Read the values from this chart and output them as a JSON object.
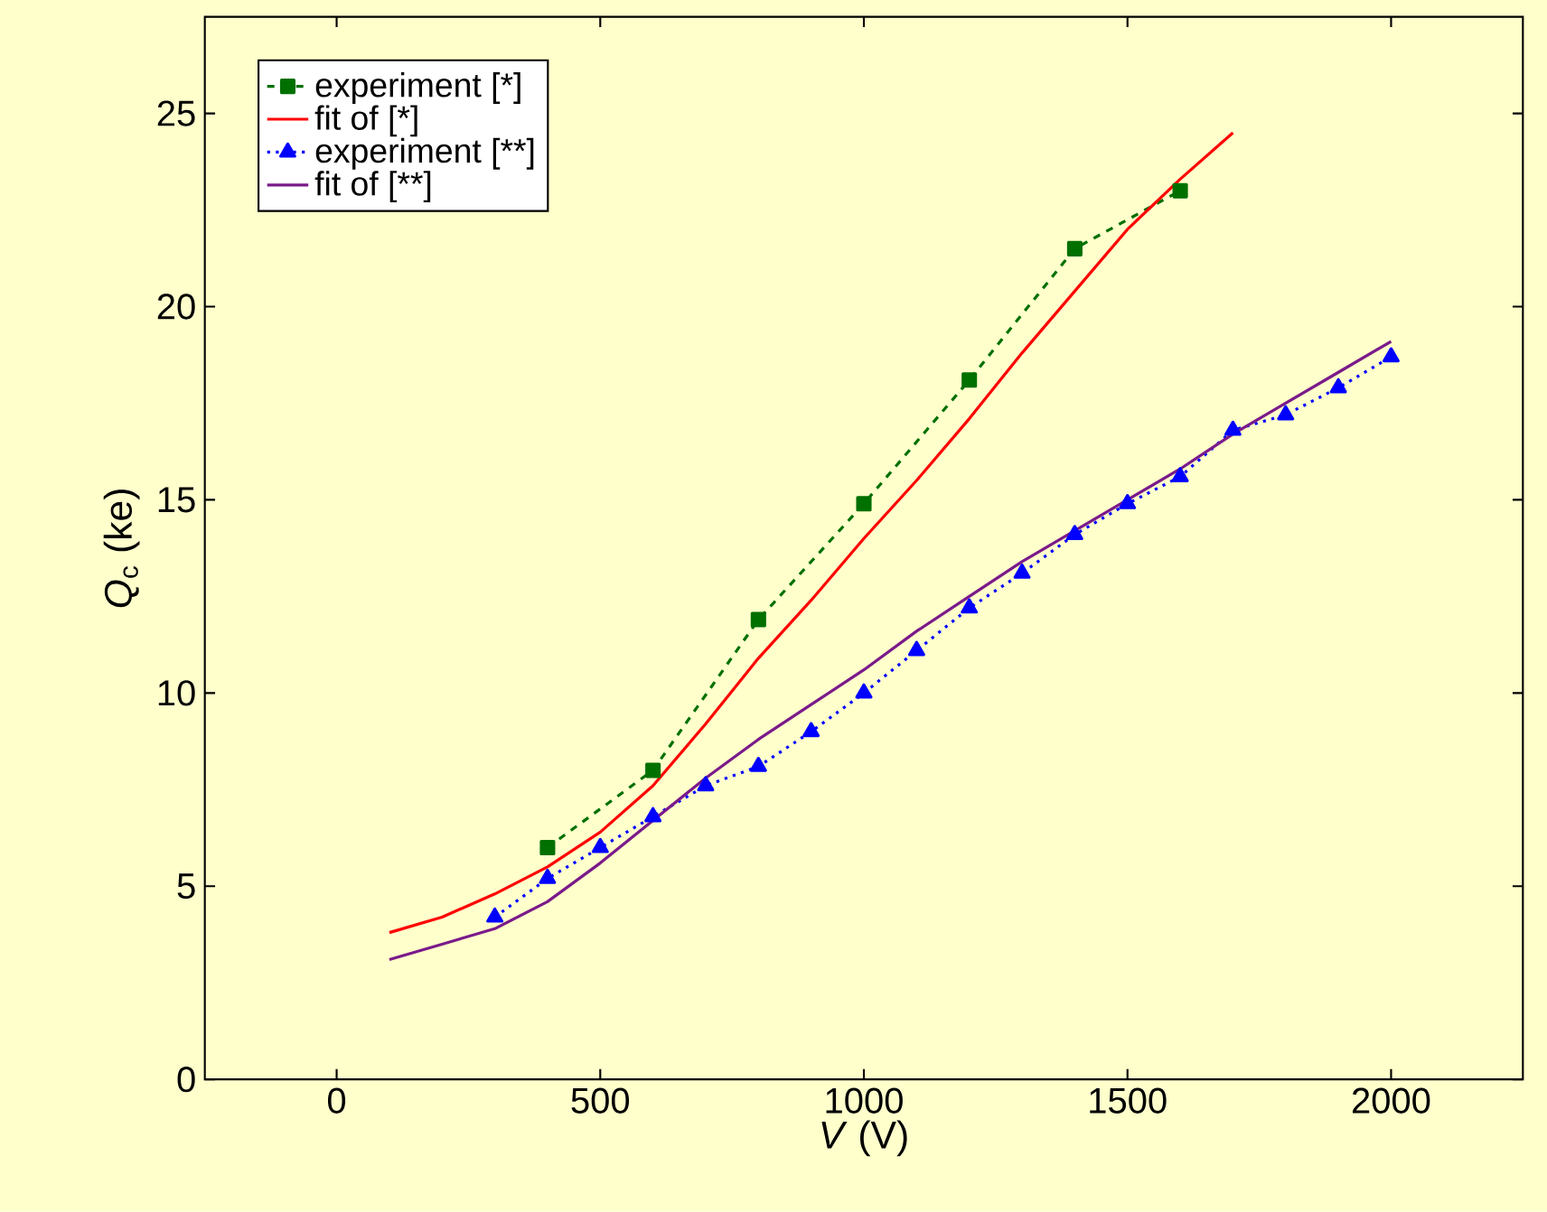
{
  "chart_data": {
    "type": "line",
    "xlabel": "*V* (V)",
    "ylabel": "*Q*$_{c}$ (ke)",
    "xlim": [
      -250,
      2250
    ],
    "ylim": [
      0,
      27.5
    ],
    "xticks": [
      0,
      500,
      1000,
      1500,
      2000
    ],
    "yticks": [
      0,
      5,
      10,
      15,
      20,
      25
    ],
    "legend": "top left",
    "series": [
      {
        "name": "experiment [*]",
        "color": "#007000",
        "marker": "square",
        "line_style": "dashed",
        "x": [
          400,
          600,
          800,
          1000,
          1200,
          1400,
          1600
        ],
        "values": [
          6.0,
          8.0,
          11.9,
          14.9,
          18.1,
          21.5,
          23.0
        ]
      },
      {
        "name": "fit of [*]",
        "color": "#ff0000",
        "marker": "none",
        "line_style": "solid",
        "x": [
          100,
          200,
          300,
          400,
          500,
          600,
          700,
          800,
          900,
          1000,
          1100,
          1200,
          1300,
          1400,
          1500,
          1600,
          1700
        ],
        "values": [
          3.8,
          4.2,
          4.8,
          5.5,
          6.4,
          7.6,
          9.2,
          10.9,
          12.4,
          14.0,
          15.5,
          17.1,
          18.8,
          20.4,
          22.0,
          23.3,
          24.5
        ]
      },
      {
        "name": "experiment [**]",
        "color": "#0000ff",
        "marker": "triangle",
        "line_style": "dotted",
        "x": [
          300,
          400,
          500,
          600,
          700,
          800,
          900,
          1000,
          1100,
          1200,
          1300,
          1400,
          1500,
          1600,
          1700,
          1800,
          1900,
          2000
        ],
        "values": [
          4.2,
          5.2,
          6.0,
          6.8,
          7.6,
          8.1,
          9.0,
          10.0,
          11.1,
          12.2,
          13.1,
          14.1,
          14.9,
          15.6,
          16.8,
          17.2,
          17.9,
          18.7
        ]
      },
      {
        "name": "fit of [**]",
        "color": "#7a1a8a",
        "marker": "none",
        "line_style": "solid",
        "x": [
          100,
          200,
          300,
          400,
          500,
          600,
          700,
          800,
          900,
          1000,
          1100,
          1200,
          1300,
          1400,
          1500,
          1600,
          1700,
          1800,
          1900,
          2000
        ],
        "values": [
          3.1,
          3.5,
          3.9,
          4.6,
          5.6,
          6.7,
          7.8,
          8.8,
          9.7,
          10.6,
          11.6,
          12.5,
          13.4,
          14.2,
          15.0,
          15.8,
          16.7,
          17.5,
          18.3,
          19.1
        ]
      }
    ]
  }
}
